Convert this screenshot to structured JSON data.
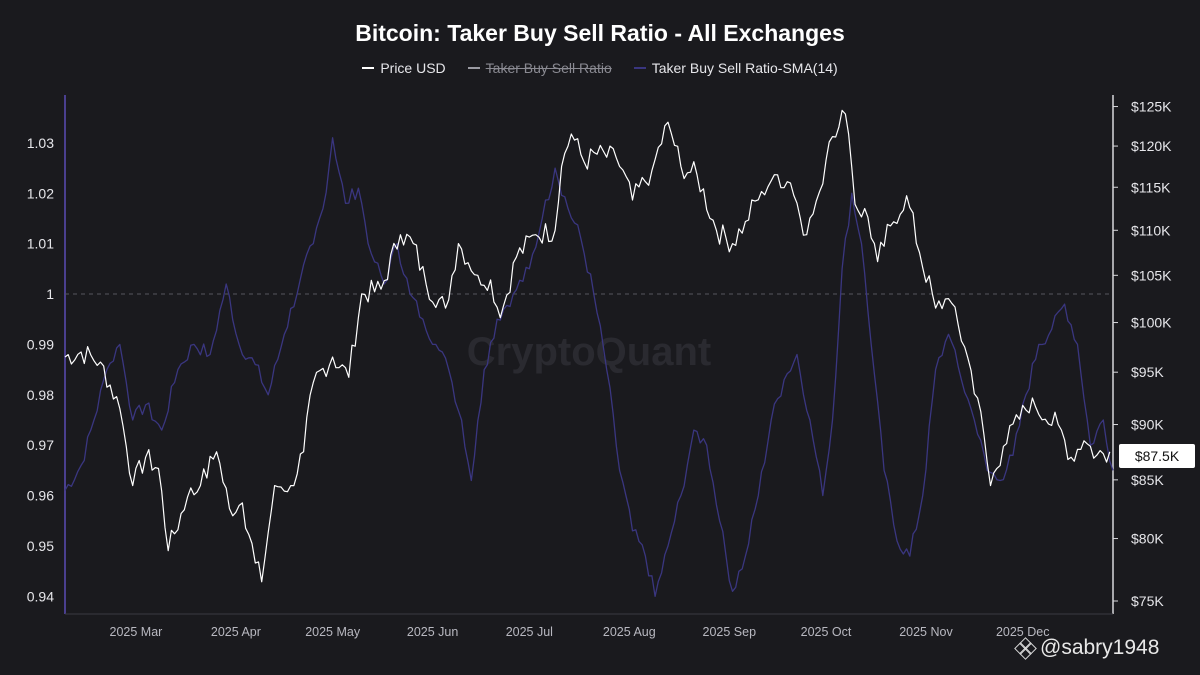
{
  "chart_data": {
    "type": "line",
    "title": "Bitcoin: Taker Buy Sell Ratio - All Exchanges",
    "legend": [
      {
        "label": "Price USD",
        "color": "#ffffff",
        "hidden": false
      },
      {
        "label": "Taker Buy Sell Ratio",
        "color": "#9a9aa2",
        "hidden": true
      },
      {
        "label": "Taker Buy Sell Ratio-SMA(14)",
        "color": "#3a3680",
        "hidden": false
      }
    ],
    "legend_position": "top-center",
    "y_left": {
      "ticks": [
        "1.03",
        "1.02",
        "1.01",
        "1",
        "0.99",
        "0.98",
        "0.97",
        "0.96",
        "0.95",
        "0.94"
      ],
      "tick_values": [
        1.03,
        1.02,
        1.01,
        1.0,
        0.99,
        0.98,
        0.97,
        0.96,
        0.95,
        0.94
      ],
      "range": [
        0.9365,
        1.0395
      ],
      "reference_line": 1.0
    },
    "y_right": {
      "ticks": [
        "$125K",
        "$120K",
        "$115K",
        "$110K",
        "$105K",
        "$100K",
        "$95K",
        "$90K",
        "$85K",
        "$80K",
        "$75K"
      ],
      "tick_values": [
        125000,
        120000,
        115000,
        110000,
        105000,
        100000,
        95000,
        90000,
        85000,
        80000,
        75000
      ],
      "scale": "log",
      "range": [
        74000,
        126500
      ]
    },
    "x_axis": {
      "ticks": [
        "2025 Mar",
        "2025 Apr",
        "2025 May",
        "2025 Jun",
        "2025 Jul",
        "2025 Aug",
        "2025 Sep",
        "2025 Oct",
        "2025 Nov",
        "2025 Dec"
      ],
      "tick_dates": [
        "2025-03-01",
        "2025-04-01",
        "2025-05-01",
        "2025-06-01",
        "2025-07-01",
        "2025-08-01",
        "2025-09-01",
        "2025-10-01",
        "2025-11-01",
        "2025-12-01"
      ],
      "range": [
        "2025-02-07",
        "2025-12-29"
      ]
    },
    "grid": false,
    "series": [
      {
        "name": "Price USD",
        "axis": "right",
        "color": "#ffffff",
        "points": [
          [
            "2025-02-07",
            96500
          ],
          [
            "2025-02-12",
            97000
          ],
          [
            "2025-02-18",
            96000
          ],
          [
            "2025-02-24",
            91500
          ],
          [
            "2025-02-28",
            84500
          ],
          [
            "2025-03-04",
            87000
          ],
          [
            "2025-03-08",
            86000
          ],
          [
            "2025-03-11",
            79000
          ],
          [
            "2025-03-17",
            83500
          ],
          [
            "2025-03-21",
            84500
          ],
          [
            "2025-03-26",
            87500
          ],
          [
            "2025-03-30",
            82500
          ],
          [
            "2025-04-03",
            83000
          ],
          [
            "2025-04-07",
            78000
          ],
          [
            "2025-04-09",
            76500
          ],
          [
            "2025-04-13",
            84500
          ],
          [
            "2025-04-18",
            84500
          ],
          [
            "2025-04-22",
            87500
          ],
          [
            "2025-04-25",
            94000
          ],
          [
            "2025-05-01",
            96500
          ],
          [
            "2025-05-06",
            94500
          ],
          [
            "2025-05-10",
            103000
          ],
          [
            "2025-05-16",
            103500
          ],
          [
            "2025-05-22",
            109500
          ],
          [
            "2025-05-26",
            108500
          ],
          [
            "2025-05-30",
            104000
          ],
          [
            "2025-06-05",
            101500
          ],
          [
            "2025-06-09",
            108500
          ],
          [
            "2025-06-15",
            105000
          ],
          [
            "2025-06-19",
            104500
          ],
          [
            "2025-06-22",
            100500
          ],
          [
            "2025-06-27",
            107000
          ],
          [
            "2025-07-03",
            109500
          ],
          [
            "2025-07-09",
            110000
          ],
          [
            "2025-07-11",
            117500
          ],
          [
            "2025-07-14",
            121500
          ],
          [
            "2025-07-18",
            118000
          ],
          [
            "2025-07-22",
            119000
          ],
          [
            "2025-07-28",
            118500
          ],
          [
            "2025-08-02",
            113500
          ],
          [
            "2025-08-08",
            117000
          ],
          [
            "2025-08-13",
            123000
          ],
          [
            "2025-08-17",
            117500
          ],
          [
            "2025-08-22",
            116500
          ],
          [
            "2025-08-28",
            110000
          ],
          [
            "2025-09-02",
            108500
          ],
          [
            "2025-09-06",
            111000
          ],
          [
            "2025-09-11",
            114500
          ],
          [
            "2025-09-15",
            116500
          ],
          [
            "2025-09-20",
            115500
          ],
          [
            "2025-09-25",
            109500
          ],
          [
            "2025-09-29",
            114500
          ],
          [
            "2025-10-02",
            120500
          ],
          [
            "2025-10-06",
            124500
          ],
          [
            "2025-10-08",
            121500
          ],
          [
            "2025-10-10",
            113000
          ],
          [
            "2025-10-14",
            111500
          ],
          [
            "2025-10-17",
            106500
          ],
          [
            "2025-10-21",
            110500
          ],
          [
            "2025-10-26",
            114000
          ],
          [
            "2025-10-30",
            107500
          ],
          [
            "2025-11-04",
            101500
          ],
          [
            "2025-11-08",
            102500
          ],
          [
            "2025-11-13",
            97500
          ],
          [
            "2025-11-17",
            92500
          ],
          [
            "2025-11-21",
            84500
          ],
          [
            "2025-11-25",
            88000
          ],
          [
            "2025-11-30",
            90500
          ],
          [
            "2025-12-04",
            92500
          ],
          [
            "2025-12-08",
            90500
          ],
          [
            "2025-12-12",
            90000
          ],
          [
            "2025-12-16",
            87000
          ],
          [
            "2025-12-20",
            88500
          ],
          [
            "2025-12-24",
            87200
          ],
          [
            "2025-12-28",
            87500
          ]
        ]
      },
      {
        "name": "Taker Buy Sell Ratio-SMA(14)",
        "axis": "left",
        "color": "#3a3680",
        "points": [
          [
            "2025-02-07",
            0.961
          ],
          [
            "2025-02-12",
            0.966
          ],
          [
            "2025-02-16",
            0.975
          ],
          [
            "2025-02-20",
            0.985
          ],
          [
            "2025-02-24",
            0.99
          ],
          [
            "2025-02-28",
            0.975
          ],
          [
            "2025-03-04",
            0.978
          ],
          [
            "2025-03-09",
            0.973
          ],
          [
            "2025-03-14",
            0.985
          ],
          [
            "2025-03-19",
            0.99
          ],
          [
            "2025-03-24",
            0.988
          ],
          [
            "2025-03-29",
            1.002
          ],
          [
            "2025-04-02",
            0.99
          ],
          [
            "2025-04-07",
            0.986
          ],
          [
            "2025-04-11",
            0.98
          ],
          [
            "2025-04-16",
            0.992
          ],
          [
            "2025-04-21",
            1.003
          ],
          [
            "2025-04-25",
            1.01
          ],
          [
            "2025-04-28",
            1.017
          ],
          [
            "2025-05-01",
            1.031
          ],
          [
            "2025-05-05",
            1.018
          ],
          [
            "2025-05-09",
            1.021
          ],
          [
            "2025-05-13",
            1.008
          ],
          [
            "2025-05-17",
            1.002
          ],
          [
            "2025-05-21",
            1.01
          ],
          [
            "2025-05-25",
            1.0
          ],
          [
            "2025-05-29",
            0.995
          ],
          [
            "2025-06-02",
            0.99
          ],
          [
            "2025-06-06",
            0.985
          ],
          [
            "2025-06-10",
            0.975
          ],
          [
            "2025-06-13",
            0.963
          ],
          [
            "2025-06-17",
            0.985
          ],
          [
            "2025-06-21",
            0.995
          ],
          [
            "2025-06-26",
            1.0
          ],
          [
            "2025-07-01",
            1.005
          ],
          [
            "2025-07-05",
            1.015
          ],
          [
            "2025-07-09",
            1.025
          ],
          [
            "2025-07-13",
            1.017
          ],
          [
            "2025-07-17",
            1.011
          ],
          [
            "2025-07-21",
            1.0
          ],
          [
            "2025-07-25",
            0.985
          ],
          [
            "2025-07-29",
            0.965
          ],
          [
            "2025-08-02",
            0.953
          ],
          [
            "2025-08-06",
            0.948
          ],
          [
            "2025-08-09",
            0.94
          ],
          [
            "2025-08-13",
            0.95
          ],
          [
            "2025-08-17",
            0.96
          ],
          [
            "2025-08-21",
            0.973
          ],
          [
            "2025-08-25",
            0.97
          ],
          [
            "2025-08-29",
            0.955
          ],
          [
            "2025-09-02",
            0.941
          ],
          [
            "2025-09-06",
            0.948
          ],
          [
            "2025-09-10",
            0.96
          ],
          [
            "2025-09-14",
            0.975
          ],
          [
            "2025-09-18",
            0.983
          ],
          [
            "2025-09-22",
            0.988
          ],
          [
            "2025-09-26",
            0.975
          ],
          [
            "2025-09-30",
            0.96
          ],
          [
            "2025-10-03",
            0.975
          ],
          [
            "2025-10-06",
            1.005
          ],
          [
            "2025-10-09",
            1.02
          ],
          [
            "2025-10-12",
            1.01
          ],
          [
            "2025-10-15",
            0.99
          ],
          [
            "2025-10-19",
            0.965
          ],
          [
            "2025-10-23",
            0.951
          ],
          [
            "2025-10-27",
            0.948
          ],
          [
            "2025-10-31",
            0.96
          ],
          [
            "2025-11-04",
            0.985
          ],
          [
            "2025-11-08",
            0.992
          ],
          [
            "2025-11-12",
            0.983
          ],
          [
            "2025-11-16",
            0.975
          ],
          [
            "2025-11-20",
            0.965
          ],
          [
            "2025-11-24",
            0.963
          ],
          [
            "2025-11-28",
            0.968
          ],
          [
            "2025-12-02",
            0.98
          ],
          [
            "2025-12-06",
            0.99
          ],
          [
            "2025-12-10",
            0.993
          ],
          [
            "2025-12-14",
            0.998
          ],
          [
            "2025-12-18",
            0.99
          ],
          [
            "2025-12-22",
            0.97
          ],
          [
            "2025-12-26",
            0.975
          ],
          [
            "2025-12-29",
            0.965
          ]
        ]
      }
    ],
    "last_price_label": "$87.5K",
    "watermark": "CryptoQuant"
  },
  "source_tag": {
    "text": "@sabry1948",
    "icon": "binance-diamond-icon"
  }
}
